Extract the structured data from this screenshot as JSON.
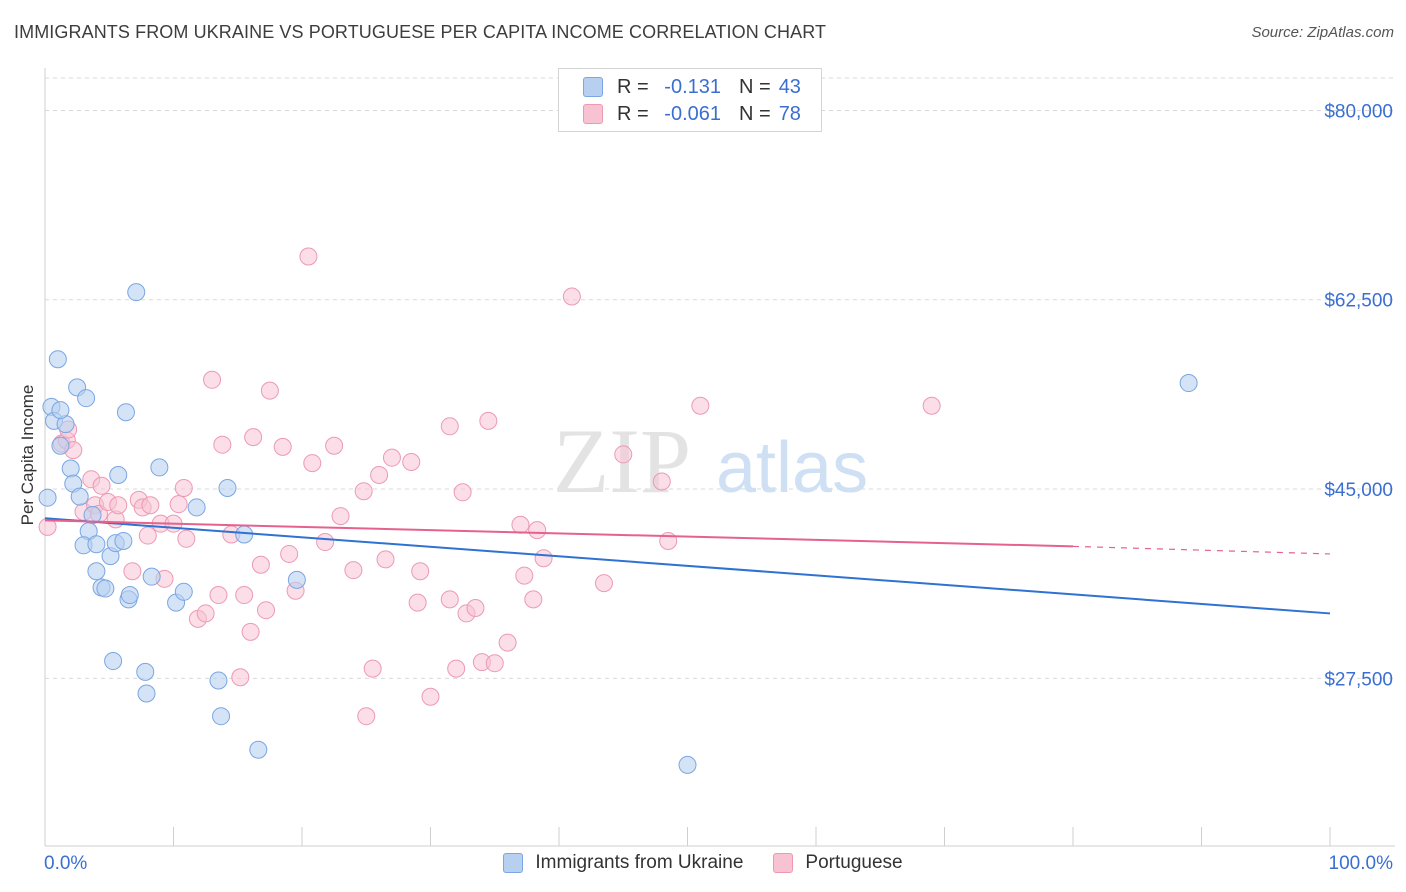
{
  "header": {
    "title": "IMMIGRANTS FROM UKRAINE VS PORTUGUESE PER CAPITA INCOME CORRELATION CHART",
    "source": "Source: ZipAtlas.com"
  },
  "watermark": {
    "zip": "ZIP",
    "atlas": "atlas"
  },
  "legend_top": [
    {
      "r_label": "R =",
      "r_value": "-0.131",
      "n_label": "N =",
      "n_value": "43"
    },
    {
      "r_label": "R =",
      "r_value": "-0.061",
      "n_label": "N =",
      "n_value": "78"
    }
  ],
  "colors": {
    "ukraine_fill": "#b8d0f0",
    "ukraine_stroke": "#7aa6e3",
    "ukraine_line": "#2e72d2",
    "portuguese_fill": "#f7c3d3",
    "portuguese_stroke": "#ec9ab4",
    "portuguese_line": "#e5628e",
    "tick_label": "#3a6fd1",
    "grid": "#d9d9d9"
  },
  "chart_data": {
    "type": "scatter",
    "title": "IMMIGRANTS FROM UKRAINE VS PORTUGUESE PER CAPITA INCOME CORRELATION CHART",
    "xlabel": "",
    "ylabel": "Per Capita Income",
    "xlim": [
      0,
      100
    ],
    "ylim": [
      12000,
      83000
    ],
    "x_tick_labels": [
      "0.0%",
      "100.0%"
    ],
    "y_ticks": [
      27500,
      45000,
      62500,
      80000
    ],
    "y_tick_labels": [
      "$27,500",
      "$45,000",
      "$62,500",
      "$80,000"
    ],
    "grid": true,
    "legend_position": "bottom",
    "series": [
      {
        "name": "Immigrants from Ukraine",
        "r": -0.131,
        "n": 43,
        "trend": {
          "x": [
            0,
            100
          ],
          "y": [
            42300,
            33500
          ]
        },
        "points": [
          [
            0.2,
            44200
          ],
          [
            0.5,
            52600
          ],
          [
            0.7,
            51300
          ],
          [
            1.0,
            57000
          ],
          [
            1.2,
            49000
          ],
          [
            1.6,
            51000
          ],
          [
            1.2,
            52300
          ],
          [
            2.0,
            46900
          ],
          [
            2.2,
            45500
          ],
          [
            2.5,
            54400
          ],
          [
            2.7,
            44300
          ],
          [
            3.2,
            53400
          ],
          [
            3.4,
            41100
          ],
          [
            3.7,
            42600
          ],
          [
            3.0,
            39800
          ],
          [
            4.0,
            39900
          ],
          [
            4.0,
            37400
          ],
          [
            4.4,
            35900
          ],
          [
            4.7,
            35800
          ],
          [
            5.1,
            38800
          ],
          [
            5.5,
            40000
          ],
          [
            5.3,
            29100
          ],
          [
            5.7,
            46300
          ],
          [
            6.1,
            40200
          ],
          [
            6.3,
            52100
          ],
          [
            6.5,
            34800
          ],
          [
            6.6,
            35200
          ],
          [
            7.1,
            63200
          ],
          [
            7.8,
            28100
          ],
          [
            7.9,
            26100
          ],
          [
            8.3,
            36900
          ],
          [
            8.9,
            47000
          ],
          [
            10.2,
            34500
          ],
          [
            10.8,
            35500
          ],
          [
            11.8,
            43300
          ],
          [
            13.5,
            27300
          ],
          [
            13.7,
            24000
          ],
          [
            14.2,
            45100
          ],
          [
            15.5,
            40800
          ],
          [
            16.6,
            20900
          ],
          [
            19.6,
            36600
          ],
          [
            50.0,
            19500
          ],
          [
            89.0,
            54800
          ]
        ]
      },
      {
        "name": "Portuguese",
        "r": -0.061,
        "n": 78,
        "trend": {
          "x": [
            0,
            80
          ],
          "y": [
            42100,
            39700
          ]
        },
        "trend_dashed": {
          "x": [
            80,
            100
          ],
          "y": [
            39700,
            39000
          ]
        },
        "points": [
          [
            0.2,
            41500
          ],
          [
            1.3,
            49200
          ],
          [
            1.7,
            49500
          ],
          [
            1.8,
            50500
          ],
          [
            2.2,
            48600
          ],
          [
            3.0,
            42900
          ],
          [
            3.6,
            45900
          ],
          [
            3.9,
            43500
          ],
          [
            4.2,
            42700
          ],
          [
            4.4,
            45300
          ],
          [
            4.9,
            43800
          ],
          [
            5.5,
            42200
          ],
          [
            5.7,
            43500
          ],
          [
            6.8,
            37400
          ],
          [
            7.3,
            44000
          ],
          [
            7.6,
            43300
          ],
          [
            8.0,
            40700
          ],
          [
            8.2,
            43500
          ],
          [
            9.0,
            41800
          ],
          [
            9.3,
            36700
          ],
          [
            10.0,
            41800
          ],
          [
            10.4,
            43600
          ],
          [
            10.8,
            45100
          ],
          [
            11.0,
            40400
          ],
          [
            11.9,
            33000
          ],
          [
            12.5,
            33500
          ],
          [
            13.0,
            55100
          ],
          [
            13.5,
            35200
          ],
          [
            13.8,
            49100
          ],
          [
            14.5,
            40800
          ],
          [
            15.2,
            27600
          ],
          [
            15.5,
            35200
          ],
          [
            16.0,
            31800
          ],
          [
            16.2,
            49800
          ],
          [
            16.8,
            38000
          ],
          [
            17.2,
            33800
          ],
          [
            17.5,
            54100
          ],
          [
            18.5,
            48900
          ],
          [
            19.0,
            39000
          ],
          [
            19.5,
            35600
          ],
          [
            20.5,
            66500
          ],
          [
            20.8,
            47400
          ],
          [
            21.8,
            40100
          ],
          [
            22.5,
            49000
          ],
          [
            23.0,
            42500
          ],
          [
            24.0,
            37500
          ],
          [
            24.8,
            44800
          ],
          [
            25.0,
            24000
          ],
          [
            25.5,
            28400
          ],
          [
            26.0,
            46300
          ],
          [
            26.5,
            38500
          ],
          [
            27.0,
            47900
          ],
          [
            28.5,
            47500
          ],
          [
            29.0,
            34500
          ],
          [
            29.2,
            37400
          ],
          [
            30.0,
            25800
          ],
          [
            31.5,
            34800
          ],
          [
            31.5,
            50800
          ],
          [
            32.0,
            28400
          ],
          [
            32.5,
            44700
          ],
          [
            32.8,
            33500
          ],
          [
            33.5,
            34000
          ],
          [
            34.0,
            29000
          ],
          [
            34.5,
            51300
          ],
          [
            35.0,
            28900
          ],
          [
            36.0,
            30800
          ],
          [
            37.0,
            41700
          ],
          [
            37.3,
            37000
          ],
          [
            38.0,
            34800
          ],
          [
            38.3,
            41200
          ],
          [
            38.8,
            38600
          ],
          [
            41.0,
            62800
          ],
          [
            43.5,
            36300
          ],
          [
            45.0,
            48200
          ],
          [
            48.0,
            45700
          ],
          [
            48.5,
            40200
          ],
          [
            51.0,
            52700
          ],
          [
            69.0,
            52700
          ]
        ]
      }
    ]
  }
}
